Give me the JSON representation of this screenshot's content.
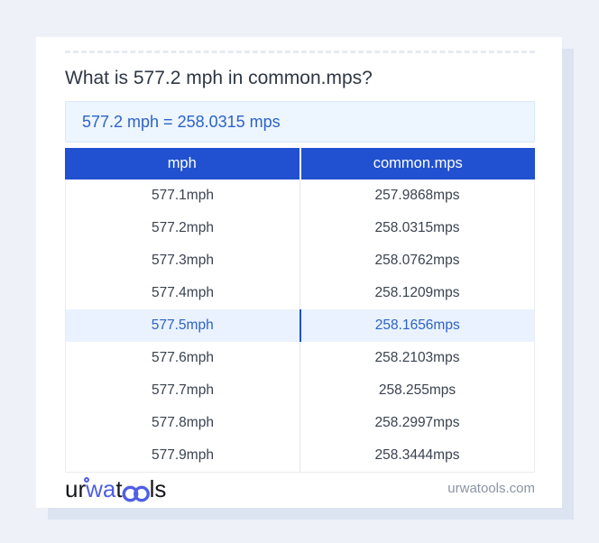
{
  "header": {
    "title": "What is 577.2 mph in common.mps?"
  },
  "result": {
    "text": "577.2 mph = 258.0315 mps"
  },
  "table": {
    "columns": [
      "mph",
      "common.mps"
    ],
    "rows": [
      [
        "577.1mph",
        "257.9868mps"
      ],
      [
        "577.2mph",
        "258.0315mps"
      ],
      [
        "577.3mph",
        "258.0762mps"
      ],
      [
        "577.4mph",
        "258.1209mps"
      ],
      [
        "577.5mph",
        "258.1656mps"
      ],
      [
        "577.6mph",
        "258.2103mps"
      ],
      [
        "577.7mph",
        "258.255mps"
      ],
      [
        "577.8mph",
        "258.2997mps"
      ],
      [
        "577.9mph",
        "258.3444mps"
      ]
    ],
    "highlighted_row_index": 4
  },
  "footer": {
    "logo_parts": {
      "p1": "ur",
      "p2": "wa",
      "p3": "t",
      "p4": "ls"
    },
    "site_label": "urwatools.com"
  },
  "colors": {
    "accent": "#2151d0",
    "result_bg": "#edf5fe",
    "result_text": "#2d63c8",
    "highlight_bg": "#e9f2fe",
    "highlight_text": "#2e62c6",
    "logo_blue": "#4f5ee5"
  }
}
